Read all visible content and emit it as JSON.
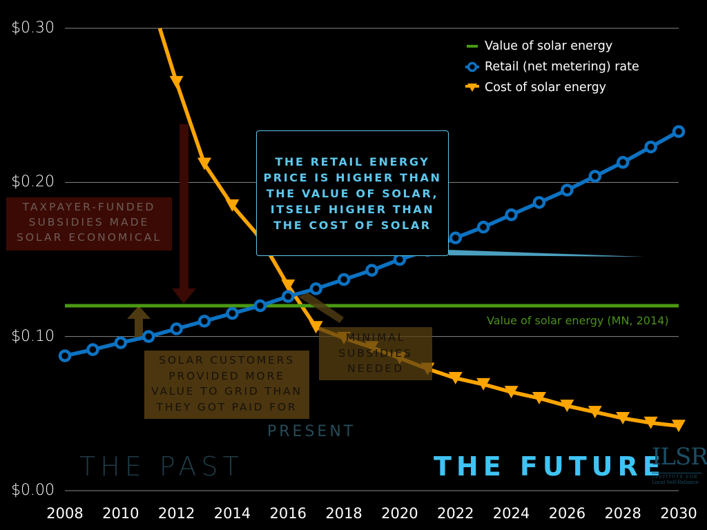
{
  "chart_data": {
    "type": "line",
    "title": "",
    "xlabel": "",
    "ylabel": "",
    "xlim": [
      2008,
      2030
    ],
    "ylim": [
      0.0,
      0.3
    ],
    "y_ticks": [
      "$0.00",
      "$0.10",
      "$0.20",
      "$0.30"
    ],
    "y_tick_values": [
      0.0,
      0.1,
      0.2,
      0.3
    ],
    "x_ticks": [
      "2008",
      "2010",
      "2012",
      "2014",
      "2016",
      "2018",
      "2020",
      "2022",
      "2024",
      "2026",
      "2028",
      "2030"
    ],
    "x_tick_values": [
      2008,
      2010,
      2012,
      2014,
      2016,
      2018,
      2020,
      2022,
      2024,
      2026,
      2028,
      2030
    ],
    "grid": "horizontal",
    "legend_position": "top-right",
    "series": [
      {
        "name": "Value of solar energy",
        "color": "#4a9a14",
        "marker": "none",
        "x": [
          2008,
          2030
        ],
        "values": [
          0.12,
          0.12
        ]
      },
      {
        "name": "Retail (net metering) rate",
        "color": "#0d72c2",
        "marker": "circle",
        "x": [
          2008,
          2009,
          2010,
          2011,
          2012,
          2013,
          2014,
          2015,
          2016,
          2017,
          2018,
          2019,
          2020,
          2021,
          2022,
          2023,
          2024,
          2025,
          2026,
          2027,
          2028,
          2029,
          2030
        ],
        "values": [
          0.0875,
          0.0915,
          0.096,
          0.1,
          0.105,
          0.11,
          0.115,
          0.12,
          0.126,
          0.131,
          0.137,
          0.143,
          0.15,
          0.156,
          0.164,
          0.171,
          0.179,
          0.187,
          0.195,
          0.204,
          0.213,
          0.223,
          0.233
        ]
      },
      {
        "name": "Cost of solar energy",
        "color": "#ffa500",
        "marker": "triangle-down",
        "x": [
          2011.4,
          2012,
          2013,
          2014,
          2015,
          2016,
          2017,
          2018,
          2019,
          2020,
          2021,
          2022,
          2023,
          2024,
          2025,
          2026,
          2027,
          2028,
          2029,
          2030
        ],
        "values": [
          0.3,
          0.265,
          0.212,
          0.185,
          0.164,
          0.133,
          0.106,
          0.099,
          0.093,
          0.086,
          0.079,
          0.073,
          0.069,
          0.064,
          0.06,
          0.055,
          0.051,
          0.047,
          0.044,
          0.042
        ],
        "first_point_marker": false
      }
    ],
    "annotations": {
      "callout": "THE RETAIL ENERGY\nPRICE IS HIGHER THAN\nTHE VALUE OF SOLAR,\nITSELF HIGHER THAN\nTHE COST OF SOLAR",
      "subsidies": "TAXPAYER-FUNDED\nSUBSIDIES MADE\nSOLAR ECONOMICAL",
      "customers": "SOLAR CUSTOMERS\nPROVIDED MORE\nVALUE TO GRID THAN\nTHEY GOT PAID FOR",
      "minimal": "MINIMAL\nSUBSIDIES\nNEEDED",
      "value_line_label": "Value of solar energy (MN, 2014)",
      "present": "PRESENT",
      "past": "THE PAST",
      "future": "THE FUTURE"
    }
  },
  "logo": {
    "mark": "ILSR",
    "line1": "INSTITUTE FOR",
    "line2": "Local Self-Reliance"
  },
  "colors": {
    "background": "#000000",
    "callout": "#5ec8ef",
    "future": "#3fc4f4",
    "past": "#1f3d48"
  }
}
